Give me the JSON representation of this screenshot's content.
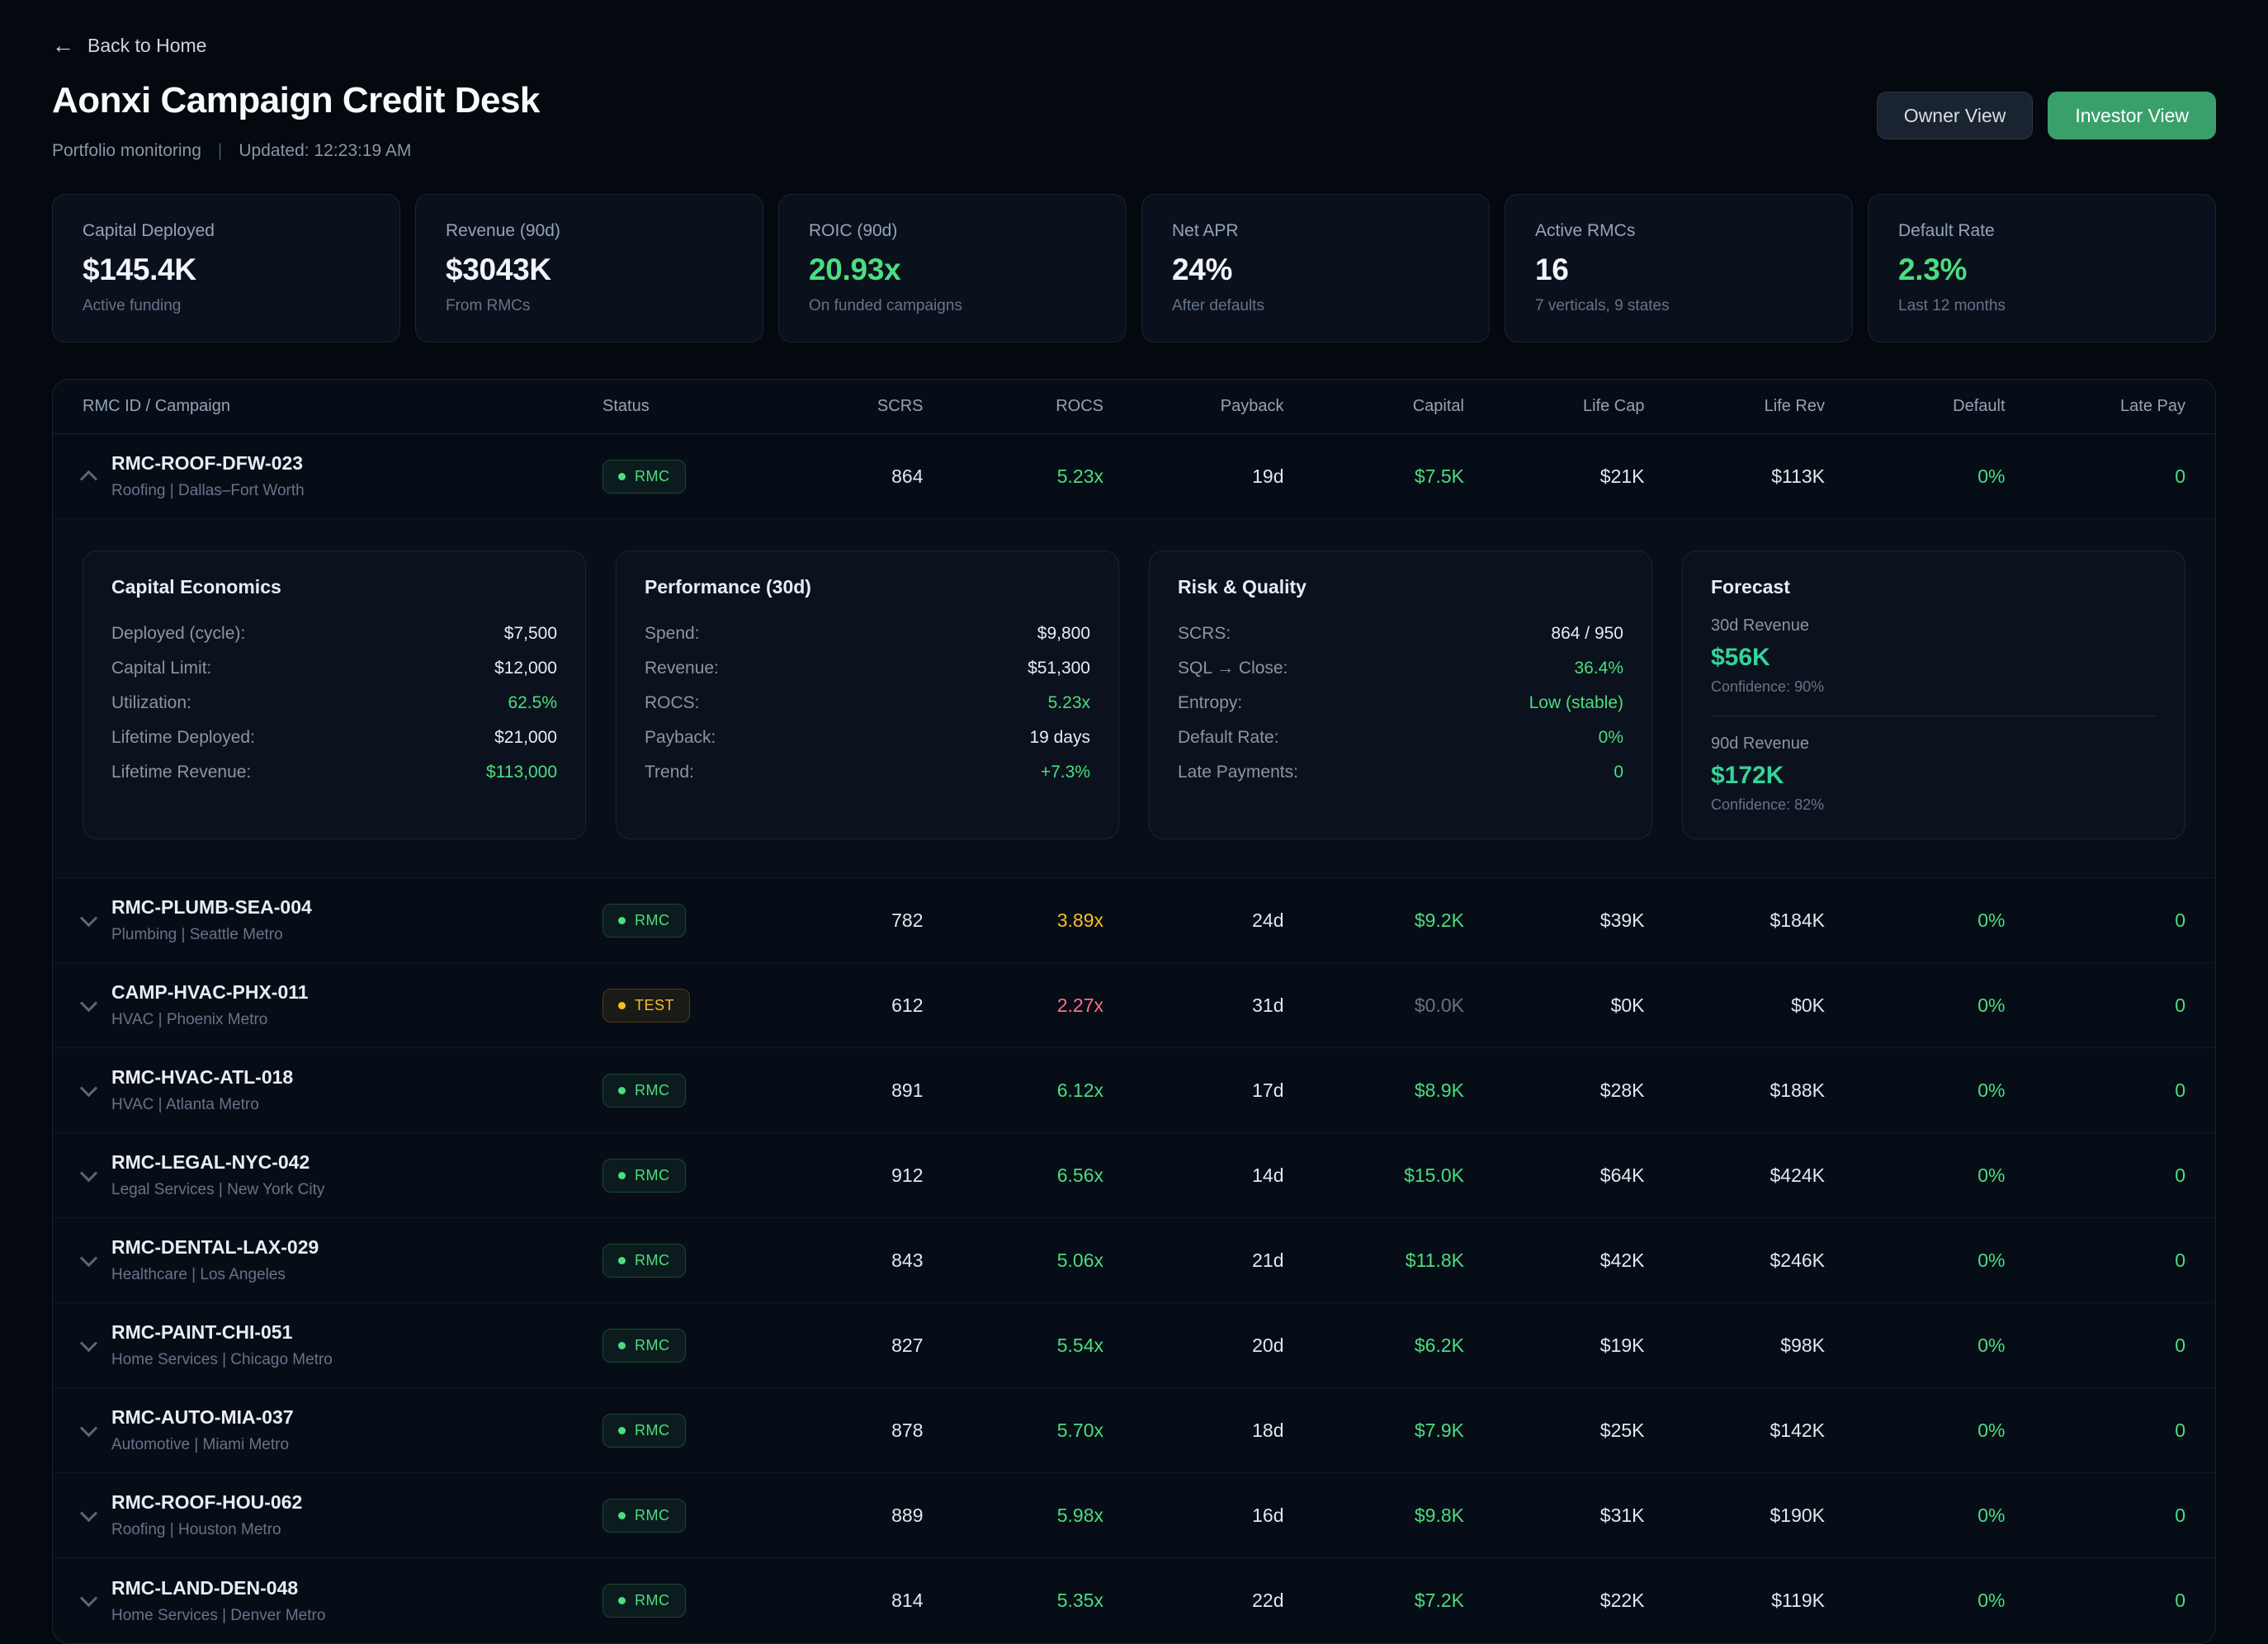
{
  "colors": {
    "green": "#4ade80",
    "amber": "#fbbf24",
    "red": "#fb7185",
    "investor_button": "#3aa06b"
  },
  "header": {
    "back_label": "Back to Home",
    "title": "Aonxi Campaign Credit Desk",
    "subtitle": "Portfolio monitoring",
    "separator": "|",
    "updated": "Updated: 12:23:19 AM",
    "owner_view_label": "Owner View",
    "investor_view_label": "Investor View"
  },
  "kpis": [
    {
      "label": "Capital Deployed",
      "value": "$145.4K",
      "sub": "Active funding",
      "accent": false
    },
    {
      "label": "Revenue (90d)",
      "value": "$3043K",
      "sub": "From RMCs",
      "accent": false
    },
    {
      "label": "ROIC (90d)",
      "value": "20.93x",
      "sub": "On funded campaigns",
      "accent": true
    },
    {
      "label": "Net APR",
      "value": "24%",
      "sub": "After defaults",
      "accent": false
    },
    {
      "label": "Active RMCs",
      "value": "16",
      "sub": "7 verticals, 9 states",
      "accent": false
    },
    {
      "label": "Default Rate",
      "value": "2.3%",
      "sub": "Last 12 months",
      "accent": true
    }
  ],
  "table": {
    "headers": [
      "RMC ID / Campaign",
      "Status",
      "SCRS",
      "ROCS",
      "Payback",
      "Capital",
      "Life Cap",
      "Life Rev",
      "Default",
      "Late Pay"
    ],
    "rows": [
      {
        "id": "RMC-ROOF-DFW-023",
        "sub": "Roofing | Dallas–Fort Worth",
        "badge": "RMC",
        "badge_type": "rmc",
        "scrs": "864",
        "rocs": "5.23x",
        "rocs_tone": "green",
        "payback": "19d",
        "capital": "$7.5K",
        "capital_tone": "green",
        "life_cap": "$21K",
        "life_rev": "$113K",
        "default_rate": "0%",
        "late_pay": "0",
        "expanded": true
      },
      {
        "id": "RMC-PLUMB-SEA-004",
        "sub": "Plumbing | Seattle Metro",
        "badge": "RMC",
        "badge_type": "rmc",
        "scrs": "782",
        "rocs": "3.89x",
        "rocs_tone": "amber",
        "payback": "24d",
        "capital": "$9.2K",
        "capital_tone": "green",
        "life_cap": "$39K",
        "life_rev": "$184K",
        "default_rate": "0%",
        "late_pay": "0",
        "expanded": false
      },
      {
        "id": "CAMP-HVAC-PHX-011",
        "sub": "HVAC | Phoenix Metro",
        "badge": "TEST",
        "badge_type": "test",
        "scrs": "612",
        "rocs": "2.27x",
        "rocs_tone": "red",
        "payback": "31d",
        "capital": "$0.0K",
        "capital_tone": "dim",
        "life_cap": "$0K",
        "life_rev": "$0K",
        "default_rate": "0%",
        "late_pay": "0",
        "expanded": false
      },
      {
        "id": "RMC-HVAC-ATL-018",
        "sub": "HVAC | Atlanta Metro",
        "badge": "RMC",
        "badge_type": "rmc",
        "scrs": "891",
        "rocs": "6.12x",
        "rocs_tone": "green",
        "payback": "17d",
        "capital": "$8.9K",
        "capital_tone": "green",
        "life_cap": "$28K",
        "life_rev": "$188K",
        "default_rate": "0%",
        "late_pay": "0",
        "expanded": false
      },
      {
        "id": "RMC-LEGAL-NYC-042",
        "sub": "Legal Services | New York City",
        "badge": "RMC",
        "badge_type": "rmc",
        "scrs": "912",
        "rocs": "6.56x",
        "rocs_tone": "green",
        "payback": "14d",
        "capital": "$15.0K",
        "capital_tone": "green",
        "life_cap": "$64K",
        "life_rev": "$424K",
        "default_rate": "0%",
        "late_pay": "0",
        "expanded": false
      },
      {
        "id": "RMC-DENTAL-LAX-029",
        "sub": "Healthcare | Los Angeles",
        "badge": "RMC",
        "badge_type": "rmc",
        "scrs": "843",
        "rocs": "5.06x",
        "rocs_tone": "green",
        "payback": "21d",
        "capital": "$11.8K",
        "capital_tone": "green",
        "life_cap": "$42K",
        "life_rev": "$246K",
        "default_rate": "0%",
        "late_pay": "0",
        "expanded": false
      },
      {
        "id": "RMC-PAINT-CHI-051",
        "sub": "Home Services | Chicago Metro",
        "badge": "RMC",
        "badge_type": "rmc",
        "scrs": "827",
        "rocs": "5.54x",
        "rocs_tone": "green",
        "payback": "20d",
        "capital": "$6.2K",
        "capital_tone": "green",
        "life_cap": "$19K",
        "life_rev": "$98K",
        "default_rate": "0%",
        "late_pay": "0",
        "expanded": false
      },
      {
        "id": "RMC-AUTO-MIA-037",
        "sub": "Automotive | Miami Metro",
        "badge": "RMC",
        "badge_type": "rmc",
        "scrs": "878",
        "rocs": "5.70x",
        "rocs_tone": "green",
        "payback": "18d",
        "capital": "$7.9K",
        "capital_tone": "green",
        "life_cap": "$25K",
        "life_rev": "$142K",
        "default_rate": "0%",
        "late_pay": "0",
        "expanded": false
      },
      {
        "id": "RMC-ROOF-HOU-062",
        "sub": "Roofing | Houston Metro",
        "badge": "RMC",
        "badge_type": "rmc",
        "scrs": "889",
        "rocs": "5.98x",
        "rocs_tone": "green",
        "payback": "16d",
        "capital": "$9.8K",
        "capital_tone": "green",
        "life_cap": "$31K",
        "life_rev": "$190K",
        "default_rate": "0%",
        "late_pay": "0",
        "expanded": false
      },
      {
        "id": "RMC-LAND-DEN-048",
        "sub": "Home Services | Denver Metro",
        "badge": "RMC",
        "badge_type": "rmc",
        "scrs": "814",
        "rocs": "5.35x",
        "rocs_tone": "green",
        "payback": "22d",
        "capital": "$7.2K",
        "capital_tone": "green",
        "life_cap": "$22K",
        "life_rev": "$119K",
        "default_rate": "0%",
        "late_pay": "0",
        "expanded": false
      }
    ]
  },
  "detail": {
    "cards": [
      {
        "title": "Capital Economics",
        "rows": [
          {
            "label": "Deployed (cycle):",
            "value": "$7,500",
            "tone": ""
          },
          {
            "label": "Capital Limit:",
            "value": "$12,000",
            "tone": ""
          },
          {
            "label": "Utilization:",
            "value": "62.5%",
            "tone": "green"
          },
          {
            "label": "Lifetime Deployed:",
            "value": "$21,000",
            "tone": ""
          },
          {
            "label": "Lifetime Revenue:",
            "value": "$113,000",
            "tone": "green"
          }
        ]
      },
      {
        "title": "Performance (30d)",
        "rows": [
          {
            "label": "Spend:",
            "value": "$9,800",
            "tone": ""
          },
          {
            "label": "Revenue:",
            "value": "$51,300",
            "tone": ""
          },
          {
            "label": "ROCS:",
            "value": "5.23x",
            "tone": "green"
          },
          {
            "label": "Payback:",
            "value": "19 days",
            "tone": ""
          },
          {
            "label": "Trend:",
            "value": "+7.3%",
            "tone": "green"
          }
        ]
      },
      {
        "title": "Risk & Quality",
        "rows": [
          {
            "label": "SCRS:",
            "value": "864 / 950",
            "tone": ""
          },
          {
            "label": "SQL → Close:",
            "value": "36.4%",
            "tone": "green"
          },
          {
            "label": "Entropy:",
            "value": "Low (stable)",
            "tone": "green"
          },
          {
            "label": "Default Rate:",
            "value": "0%",
            "tone": "green"
          },
          {
            "label": "Late Payments:",
            "value": "0",
            "tone": "green"
          }
        ]
      }
    ],
    "forecast": {
      "title": "Forecast",
      "blocks": [
        {
          "label": "30d Revenue",
          "value": "$56K",
          "confidence": "Confidence: 90%"
        },
        {
          "label": "90d Revenue",
          "value": "$172K",
          "confidence": "Confidence: 82%"
        }
      ]
    }
  }
}
